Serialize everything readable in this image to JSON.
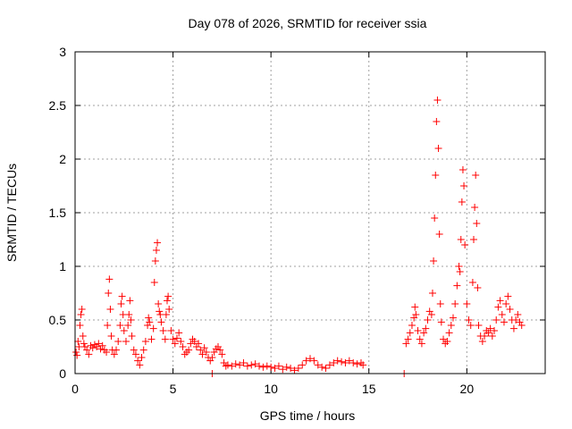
{
  "chart_data": {
    "type": "scatter",
    "title": "Day 078 of 2026, SRMTID for receiver ssia",
    "xlabel": "GPS time / hours",
    "ylabel": "SRMTID / TECUs",
    "xlim": [
      0,
      24
    ],
    "ylim": [
      0,
      3
    ],
    "x_ticks": [
      0,
      5,
      10,
      15,
      20
    ],
    "y_ticks": [
      0,
      0.5,
      1,
      1.5,
      2,
      2.5,
      3
    ],
    "x_tick_labels": [
      "0",
      "5",
      "10",
      "15",
      "20"
    ],
    "y_tick_labels": [
      "0",
      "0.5",
      "1",
      "1.5",
      "2",
      "2.5",
      "3"
    ],
    "grid": true,
    "marker": "+",
    "color": "#ff0000",
    "series": [
      {
        "name": "SRMTID",
        "points": [
          [
            0.05,
            0.2
          ],
          [
            0.1,
            0.17
          ],
          [
            0.15,
            0.3
          ],
          [
            0.2,
            0.25
          ],
          [
            0.25,
            0.45
          ],
          [
            0.3,
            0.55
          ],
          [
            0.35,
            0.6
          ],
          [
            0.4,
            0.35
          ],
          [
            0.45,
            0.28
          ],
          [
            0.5,
            0.25
          ],
          [
            0.6,
            0.22
          ],
          [
            0.7,
            0.18
          ],
          [
            0.8,
            0.26
          ],
          [
            0.9,
            0.24
          ],
          [
            1.0,
            0.27
          ],
          [
            1.1,
            0.25
          ],
          [
            1.2,
            0.28
          ],
          [
            1.3,
            0.23
          ],
          [
            1.4,
            0.26
          ],
          [
            1.5,
            0.22
          ],
          [
            1.6,
            0.2
          ],
          [
            1.65,
            0.45
          ],
          [
            1.7,
            0.75
          ],
          [
            1.75,
            0.88
          ],
          [
            1.8,
            0.6
          ],
          [
            1.85,
            0.35
          ],
          [
            1.9,
            0.22
          ],
          [
            2.0,
            0.18
          ],
          [
            2.1,
            0.22
          ],
          [
            2.2,
            0.3
          ],
          [
            2.3,
            0.45
          ],
          [
            2.35,
            0.65
          ],
          [
            2.4,
            0.72
          ],
          [
            2.45,
            0.55
          ],
          [
            2.5,
            0.4
          ],
          [
            2.6,
            0.3
          ],
          [
            2.7,
            0.45
          ],
          [
            2.75,
            0.55
          ],
          [
            2.8,
            0.68
          ],
          [
            2.85,
            0.5
          ],
          [
            2.9,
            0.35
          ],
          [
            3.0,
            0.22
          ],
          [
            3.1,
            0.18
          ],
          [
            3.2,
            0.12
          ],
          [
            3.3,
            0.08
          ],
          [
            3.4,
            0.15
          ],
          [
            3.5,
            0.22
          ],
          [
            3.6,
            0.3
          ],
          [
            3.7,
            0.45
          ],
          [
            3.75,
            0.52
          ],
          [
            3.8,
            0.48
          ],
          [
            3.9,
            0.32
          ],
          [
            4.0,
            0.42
          ],
          [
            4.05,
            0.85
          ],
          [
            4.1,
            1.05
          ],
          [
            4.15,
            1.15
          ],
          [
            4.2,
            1.22
          ],
          [
            4.25,
            0.65
          ],
          [
            4.3,
            0.58
          ],
          [
            4.35,
            0.55
          ],
          [
            4.4,
            0.48
          ],
          [
            4.5,
            0.4
          ],
          [
            4.6,
            0.32
          ],
          [
            4.65,
            0.55
          ],
          [
            4.7,
            0.68
          ],
          [
            4.75,
            0.72
          ],
          [
            4.8,
            0.6
          ],
          [
            4.9,
            0.4
          ],
          [
            5.0,
            0.32
          ],
          [
            5.1,
            0.28
          ],
          [
            5.2,
            0.33
          ],
          [
            5.3,
            0.38
          ],
          [
            5.4,
            0.3
          ],
          [
            5.5,
            0.25
          ],
          [
            5.6,
            0.18
          ],
          [
            5.7,
            0.2
          ],
          [
            5.8,
            0.22
          ],
          [
            5.9,
            0.28
          ],
          [
            6.0,
            0.32
          ],
          [
            6.1,
            0.3
          ],
          [
            6.2,
            0.25
          ],
          [
            6.3,
            0.28
          ],
          [
            6.4,
            0.22
          ],
          [
            6.5,
            0.18
          ],
          [
            6.6,
            0.24
          ],
          [
            6.7,
            0.2
          ],
          [
            6.8,
            0.15
          ],
          [
            6.9,
            0.12
          ],
          [
            7.0,
            0.15
          ],
          [
            7.1,
            0.2
          ],
          [
            7.2,
            0.23
          ],
          [
            7.3,
            0.25
          ],
          [
            7.4,
            0.22
          ],
          [
            7.5,
            0.18
          ],
          [
            7.6,
            0.1
          ],
          [
            7.7,
            0.07
          ],
          [
            7.8,
            0.08
          ],
          [
            8.0,
            0.07
          ],
          [
            8.2,
            0.09
          ],
          [
            8.4,
            0.08
          ],
          [
            8.6,
            0.1
          ],
          [
            8.8,
            0.07
          ],
          [
            9.0,
            0.08
          ],
          [
            9.2,
            0.09
          ],
          [
            9.4,
            0.07
          ],
          [
            9.6,
            0.06
          ],
          [
            9.8,
            0.07
          ],
          [
            10.0,
            0.06
          ],
          [
            10.2,
            0.05
          ],
          [
            10.4,
            0.07
          ],
          [
            10.6,
            0.04
          ],
          [
            10.8,
            0.06
          ],
          [
            11.0,
            0.05
          ],
          [
            11.2,
            0.03
          ],
          [
            11.4,
            0.05
          ],
          [
            11.6,
            0.08
          ],
          [
            11.8,
            0.12
          ],
          [
            12.0,
            0.14
          ],
          [
            12.2,
            0.12
          ],
          [
            12.4,
            0.08
          ],
          [
            12.6,
            0.06
          ],
          [
            12.8,
            0.05
          ],
          [
            13.0,
            0.08
          ],
          [
            13.2,
            0.1
          ],
          [
            13.4,
            0.12
          ],
          [
            13.6,
            0.11
          ],
          [
            13.8,
            0.1
          ],
          [
            14.0,
            0.12
          ],
          [
            14.2,
            0.1
          ],
          [
            14.4,
            0.09
          ],
          [
            14.6,
            0.1
          ],
          [
            14.7,
            0.08
          ],
          [
            7.0,
            0.0
          ],
          [
            16.8,
            0.0
          ],
          [
            16.9,
            0.28
          ],
          [
            17.0,
            0.32
          ],
          [
            17.1,
            0.38
          ],
          [
            17.2,
            0.45
          ],
          [
            17.3,
            0.52
          ],
          [
            17.35,
            0.62
          ],
          [
            17.4,
            0.55
          ],
          [
            17.5,
            0.4
          ],
          [
            17.6,
            0.32
          ],
          [
            17.7,
            0.28
          ],
          [
            17.8,
            0.38
          ],
          [
            17.9,
            0.42
          ],
          [
            18.0,
            0.5
          ],
          [
            18.1,
            0.58
          ],
          [
            18.2,
            0.55
          ],
          [
            18.25,
            0.75
          ],
          [
            18.3,
            1.05
          ],
          [
            18.35,
            1.45
          ],
          [
            18.4,
            1.85
          ],
          [
            18.45,
            2.35
          ],
          [
            18.5,
            2.55
          ],
          [
            18.55,
            2.1
          ],
          [
            18.6,
            1.3
          ],
          [
            18.65,
            0.65
          ],
          [
            18.7,
            0.48
          ],
          [
            18.8,
            0.32
          ],
          [
            18.9,
            0.28
          ],
          [
            19.0,
            0.3
          ],
          [
            19.1,
            0.38
          ],
          [
            19.2,
            0.45
          ],
          [
            19.3,
            0.52
          ],
          [
            19.4,
            0.65
          ],
          [
            19.5,
            0.82
          ],
          [
            19.6,
            1.0
          ],
          [
            19.65,
            0.95
          ],
          [
            19.7,
            1.25
          ],
          [
            19.75,
            1.6
          ],
          [
            19.8,
            1.9
          ],
          [
            19.85,
            1.75
          ],
          [
            19.9,
            1.2
          ],
          [
            20.0,
            0.65
          ],
          [
            20.1,
            0.5
          ],
          [
            20.2,
            0.45
          ],
          [
            20.3,
            0.85
          ],
          [
            20.35,
            1.25
          ],
          [
            20.4,
            1.55
          ],
          [
            20.45,
            1.85
          ],
          [
            20.5,
            1.4
          ],
          [
            20.55,
            0.8
          ],
          [
            20.6,
            0.45
          ],
          [
            20.7,
            0.35
          ],
          [
            20.8,
            0.3
          ],
          [
            20.9,
            0.35
          ],
          [
            21.0,
            0.4
          ],
          [
            21.1,
            0.38
          ],
          [
            21.2,
            0.42
          ],
          [
            21.3,
            0.35
          ],
          [
            21.4,
            0.4
          ],
          [
            21.5,
            0.5
          ],
          [
            21.6,
            0.62
          ],
          [
            21.7,
            0.68
          ],
          [
            21.8,
            0.55
          ],
          [
            21.9,
            0.48
          ],
          [
            22.0,
            0.65
          ],
          [
            22.1,
            0.72
          ],
          [
            22.2,
            0.6
          ],
          [
            22.3,
            0.5
          ],
          [
            22.4,
            0.42
          ],
          [
            22.5,
            0.5
          ],
          [
            22.6,
            0.55
          ],
          [
            22.7,
            0.48
          ],
          [
            22.8,
            0.45
          ]
        ]
      }
    ]
  }
}
